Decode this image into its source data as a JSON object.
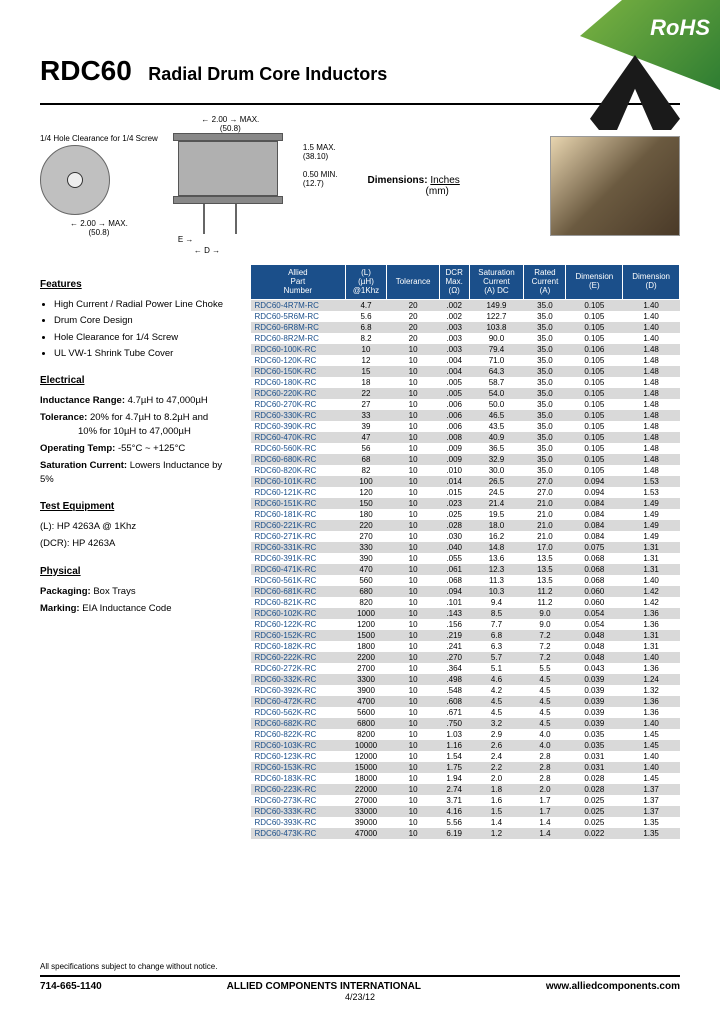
{
  "banner": {
    "rohs": "RoHS"
  },
  "header": {
    "title": "RDC60",
    "subtitle": "Radial Drum Core Inductors"
  },
  "diagram": {
    "clearance_note": "1/4 Hole Clearance\nfor 1/4 Screw",
    "dim_2_00": "2.00",
    "dim_50_8": "(50.8)",
    "dim_max": "MAX.",
    "dim_1_5": "1.5",
    "dim_38_10": "(38.10)",
    "dim_0_50": "0.50",
    "dim_12_7": "(12.7)",
    "dim_min": "MIN.",
    "label_E": "E",
    "label_D": "D",
    "dimensions_label": "Dimensions:",
    "inches": "Inches",
    "mm": "(mm)"
  },
  "features": {
    "heading": "Features",
    "items": [
      "High Current / Radial Power Line Choke",
      "Drum Core Design",
      "Hole Clearance for 1/4 Screw",
      "UL VW-1 Shrink Tube Cover"
    ]
  },
  "electrical": {
    "heading": "Electrical",
    "range_lbl": "Inductance Range:",
    "range_val": "4.7µH to 47,000µH",
    "tol_lbl": "Tolerance:",
    "tol_val1": "20% for 4.7µH to 8.2µH and",
    "tol_val2": "10% for 10µH to 47,000µH",
    "temp_lbl": "Operating Temp:",
    "temp_val": "-55°C ~ +125°C",
    "sat_lbl": "Saturation Current:",
    "sat_val": "Lowers Inductance by 5%"
  },
  "test": {
    "heading": "Test Equipment",
    "l": "(L): HP 4263A @ 1Khz",
    "dcr": "(DCR): HP 4263A"
  },
  "physical": {
    "heading": "Physical",
    "pkg_lbl": "Packaging:",
    "pkg_val": "Box Trays",
    "mark_lbl": "Marking:",
    "mark_val": "EIA Inductance Code"
  },
  "table": {
    "headers": [
      "Allied\nPart\nNumber",
      "(L)\n(µH)\n@1Khz",
      "Tolerance",
      "DCR\nMax.\n(Ω)",
      "Saturation\nCurrent\n(A) DC",
      "Rated\nCurrent\n(A)",
      "Dimension\n(E)",
      "Dimension\n(D)"
    ],
    "header_bg": "#1b4f8a",
    "row_odd_bg": "#d9d9d9",
    "row_even_bg": "#ffffff",
    "part_color": "#1b4f8a",
    "rows": [
      [
        "RDC60-4R7M-RC",
        "4.7",
        "20",
        ".002",
        "149.9",
        "35.0",
        "0.105",
        "1.40"
      ],
      [
        "RDC60-5R6M-RC",
        "5.6",
        "20",
        ".002",
        "122.7",
        "35.0",
        "0.105",
        "1.40"
      ],
      [
        "RDC60-6R8M-RC",
        "6.8",
        "20",
        ".003",
        "103.8",
        "35.0",
        "0.105",
        "1.40"
      ],
      [
        "RDC60-8R2M-RC",
        "8.2",
        "20",
        ".003",
        "90.0",
        "35.0",
        "0.105",
        "1.40"
      ],
      [
        "RDC60-100K-RC",
        "10",
        "10",
        ".003",
        "79.4",
        "35.0",
        "0.106",
        "1.48"
      ],
      [
        "RDC60-120K-RC",
        "12",
        "10",
        ".004",
        "71.0",
        "35.0",
        "0.105",
        "1.48"
      ],
      [
        "RDC60-150K-RC",
        "15",
        "10",
        ".004",
        "64.3",
        "35.0",
        "0.105",
        "1.48"
      ],
      [
        "RDC60-180K-RC",
        "18",
        "10",
        ".005",
        "58.7",
        "35.0",
        "0.105",
        "1.48"
      ],
      [
        "RDC60-220K-RC",
        "22",
        "10",
        ".005",
        "54.0",
        "35.0",
        "0.105",
        "1.48"
      ],
      [
        "RDC60-270K-RC",
        "27",
        "10",
        ".006",
        "50.0",
        "35.0",
        "0.105",
        "1.48"
      ],
      [
        "RDC60-330K-RC",
        "33",
        "10",
        ".006",
        "46.5",
        "35.0",
        "0.105",
        "1.48"
      ],
      [
        "RDC60-390K-RC",
        "39",
        "10",
        ".006",
        "43.5",
        "35.0",
        "0.105",
        "1.48"
      ],
      [
        "RDC60-470K-RC",
        "47",
        "10",
        ".008",
        "40.9",
        "35.0",
        "0.105",
        "1.48"
      ],
      [
        "RDC60-560K-RC",
        "56",
        "10",
        ".009",
        "36.5",
        "35.0",
        "0.105",
        "1.48"
      ],
      [
        "RDC60-680K-RC",
        "68",
        "10",
        ".009",
        "32.9",
        "35.0",
        "0.105",
        "1.48"
      ],
      [
        "RDC60-820K-RC",
        "82",
        "10",
        ".010",
        "30.0",
        "35.0",
        "0.105",
        "1.48"
      ],
      [
        "RDC60-101K-RC",
        "100",
        "10",
        ".014",
        "26.5",
        "27.0",
        "0.094",
        "1.53"
      ],
      [
        "RDC60-121K-RC",
        "120",
        "10",
        ".015",
        "24.5",
        "27.0",
        "0.094",
        "1.53"
      ],
      [
        "RDC60-151K-RC",
        "150",
        "10",
        ".023",
        "21.4",
        "21.0",
        "0.084",
        "1.49"
      ],
      [
        "RDC60-181K-RC",
        "180",
        "10",
        ".025",
        "19.5",
        "21.0",
        "0.084",
        "1.49"
      ],
      [
        "RDC60-221K-RC",
        "220",
        "10",
        ".028",
        "18.0",
        "21.0",
        "0.084",
        "1.49"
      ],
      [
        "RDC60-271K-RC",
        "270",
        "10",
        ".030",
        "16.2",
        "21.0",
        "0.084",
        "1.49"
      ],
      [
        "RDC60-331K-RC",
        "330",
        "10",
        ".040",
        "14.8",
        "17.0",
        "0.075",
        "1.31"
      ],
      [
        "RDC60-391K-RC",
        "390",
        "10",
        ".055",
        "13.6",
        "13.5",
        "0.068",
        "1.31"
      ],
      [
        "RDC60-471K-RC",
        "470",
        "10",
        ".061",
        "12.3",
        "13.5",
        "0.068",
        "1.31"
      ],
      [
        "RDC60-561K-RC",
        "560",
        "10",
        ".068",
        "11.3",
        "13.5",
        "0.068",
        "1.40"
      ],
      [
        "RDC60-681K-RC",
        "680",
        "10",
        ".094",
        "10.3",
        "11.2",
        "0.060",
        "1.42"
      ],
      [
        "RDC60-821K-RC",
        "820",
        "10",
        ".101",
        "9.4",
        "11.2",
        "0.060",
        "1.42"
      ],
      [
        "RDC60-102K-RC",
        "1000",
        "10",
        ".143",
        "8.5",
        "9.0",
        "0.054",
        "1.36"
      ],
      [
        "RDC60-122K-RC",
        "1200",
        "10",
        ".156",
        "7.7",
        "9.0",
        "0.054",
        "1.36"
      ],
      [
        "RDC60-152K-RC",
        "1500",
        "10",
        ".219",
        "6.8",
        "7.2",
        "0.048",
        "1.31"
      ],
      [
        "RDC60-182K-RC",
        "1800",
        "10",
        ".241",
        "6.3",
        "7.2",
        "0.048",
        "1.31"
      ],
      [
        "RDC60-222K-RC",
        "2200",
        "10",
        ".270",
        "5.7",
        "7.2",
        "0.048",
        "1.40"
      ],
      [
        "RDC60-272K-RC",
        "2700",
        "10",
        ".364",
        "5.1",
        "5.5",
        "0.043",
        "1.36"
      ],
      [
        "RDC60-332K-RC",
        "3300",
        "10",
        ".498",
        "4.6",
        "4.5",
        "0.039",
        "1.24"
      ],
      [
        "RDC60-392K-RC",
        "3900",
        "10",
        ".548",
        "4.2",
        "4.5",
        "0.039",
        "1.32"
      ],
      [
        "RDC60-472K-RC",
        "4700",
        "10",
        ".608",
        "4.5",
        "4.5",
        "0.039",
        "1.36"
      ],
      [
        "RDC60-562K-RC",
        "5600",
        "10",
        ".671",
        "4.5",
        "4.5",
        "0.039",
        "1.36"
      ],
      [
        "RDC60-682K-RC",
        "6800",
        "10",
        ".750",
        "3.2",
        "4.5",
        "0.039",
        "1.40"
      ],
      [
        "RDC60-822K-RC",
        "8200",
        "10",
        "1.03",
        "2.9",
        "4.0",
        "0.035",
        "1.45"
      ],
      [
        "RDC60-103K-RC",
        "10000",
        "10",
        "1.16",
        "2.6",
        "4.0",
        "0.035",
        "1.45"
      ],
      [
        "RDC60-123K-RC",
        "12000",
        "10",
        "1.54",
        "2.4",
        "2.8",
        "0.031",
        "1.40"
      ],
      [
        "RDC60-153K-RC",
        "15000",
        "10",
        "1.75",
        "2.2",
        "2.8",
        "0.031",
        "1.40"
      ],
      [
        "RDC60-183K-RC",
        "18000",
        "10",
        "1.94",
        "2.0",
        "2.8",
        "0.028",
        "1.45"
      ],
      [
        "RDC60-223K-RC",
        "22000",
        "10",
        "2.74",
        "1.8",
        "2.0",
        "0.028",
        "1.37"
      ],
      [
        "RDC60-273K-RC",
        "27000",
        "10",
        "3.71",
        "1.6",
        "1.7",
        "0.025",
        "1.37"
      ],
      [
        "RDC60-333K-RC",
        "33000",
        "10",
        "4.16",
        "1.5",
        "1.7",
        "0.025",
        "1.37"
      ],
      [
        "RDC60-393K-RC",
        "39000",
        "10",
        "5.56",
        "1.4",
        "1.4",
        "0.025",
        "1.35"
      ],
      [
        "RDC60-473K-RC",
        "47000",
        "10",
        "6.19",
        "1.2",
        "1.4",
        "0.022",
        "1.35"
      ]
    ]
  },
  "footer": {
    "note": "All specifications subject to change without notice.",
    "phone": "714-665-1140",
    "company": "ALLIED COMPONENTS INTERNATIONAL",
    "url": "www.alliedcomponents.com",
    "date": "4/23/12"
  }
}
